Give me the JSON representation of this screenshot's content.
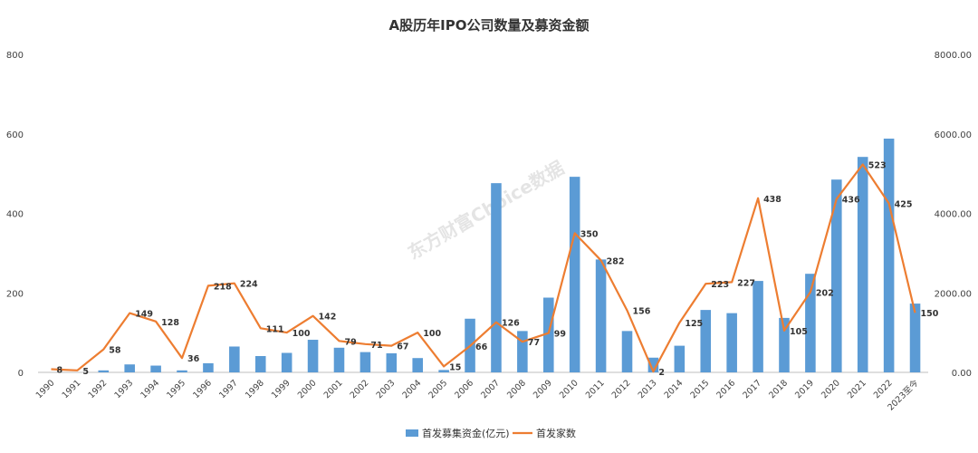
{
  "chart_data": {
    "type": "bar",
    "title": "A股历年IPO公司数量及募资金额",
    "watermark": "东方财富Choice数据",
    "categories": [
      "1990",
      "1991",
      "1992",
      "1993",
      "1994",
      "1995",
      "1996",
      "1997",
      "1998",
      "1999",
      "2000",
      "2001",
      "2002",
      "2003",
      "2004",
      "2005",
      "2006",
      "2007",
      "2008",
      "2009",
      "2010",
      "2011",
      "2012",
      "2013",
      "2014",
      "2015",
      "2016",
      "2017",
      "2018",
      "2019",
      "2020",
      "2021",
      "2022",
      "2023至今"
    ],
    "series": [
      {
        "name": "首发募集资金(亿元)",
        "type": "bar",
        "axis": "left",
        "color": "#5b9bd5",
        "values": [
          0,
          0,
          5,
          20,
          17,
          5,
          23,
          65,
          41,
          49,
          82,
          62,
          51,
          48,
          36,
          6,
          135,
          476,
          104,
          188,
          492,
          284,
          104,
          37,
          67,
          157,
          149,
          230,
          137,
          248,
          485,
          542,
          588,
          173
        ]
      },
      {
        "name": "首发家数",
        "type": "line",
        "axis": "right",
        "color": "#ed7d31",
        "values": [
          8,
          5,
          58,
          149,
          128,
          36,
          218,
          224,
          111,
          100,
          142,
          79,
          71,
          67,
          100,
          15,
          66,
          126,
          77,
          99,
          350,
          282,
          156,
          2,
          125,
          223,
          227,
          438,
          105,
          202,
          436,
          523,
          425,
          150
        ],
        "labels": [
          "8",
          "5",
          "58",
          "149",
          "128",
          "36",
          "218",
          "224",
          "111",
          "100",
          "142",
          "79",
          "71",
          "67",
          "100",
          "15",
          "66",
          "126",
          "77",
          "99",
          "350",
          "282",
          "156",
          "2",
          "125",
          "223",
          "227",
          "438",
          "105",
          "202",
          "436",
          "523",
          "425",
          "150"
        ]
      }
    ],
    "y_left": {
      "min": 0,
      "max": 800,
      "ticks": [
        "0",
        "200",
        "400",
        "600",
        "800"
      ]
    },
    "y_right": {
      "min": 0,
      "max": 8000,
      "ticks": [
        "0.00",
        "2000.00",
        "4000.00",
        "6000.00",
        "8000.00"
      ]
    },
    "grid": false,
    "legend": "bottom"
  }
}
